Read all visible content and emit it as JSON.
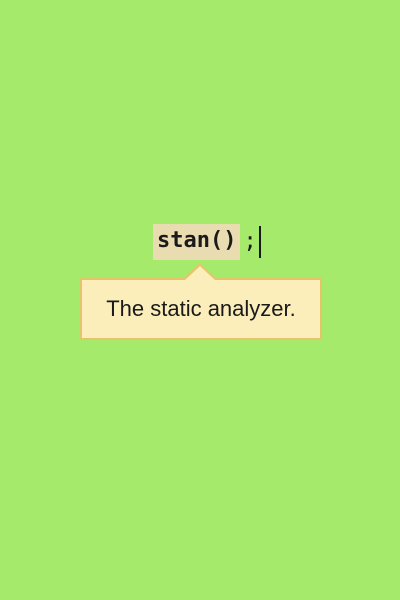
{
  "editor": {
    "token": "stan()",
    "rest": ";"
  },
  "tooltip": {
    "text": "The static analyzer."
  },
  "colors": {
    "background": "#a6ea6b",
    "token_highlight": "#e8dcb0",
    "tooltip_bg": "#fbeebb",
    "tooltip_border": "#e6c46a"
  }
}
